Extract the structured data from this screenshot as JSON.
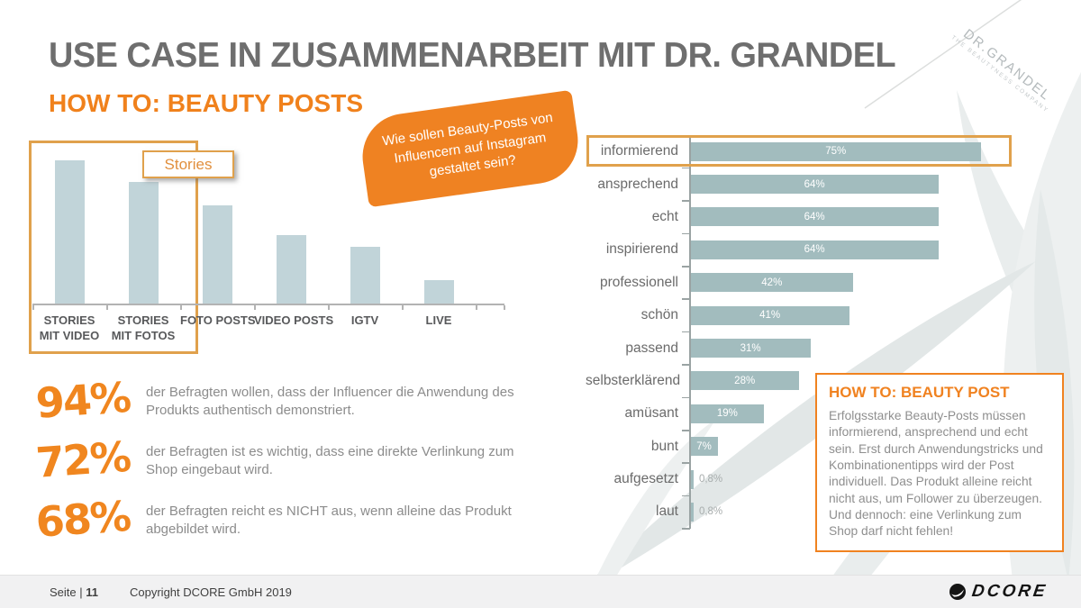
{
  "slide": {
    "title": "USE CASE IN ZUSAMMENARBEIT MIT DR. GRANDEL",
    "subtitle": "HOW TO: BEAUTY POSTS",
    "brand": {
      "name": "DR.GRANDEL",
      "tagline": "THE BEAUTYNESS COMPANY"
    }
  },
  "question_bubble": {
    "lines": [
      "Wie sollen Beauty-Posts von",
      "Influencern auf Instagram",
      "gestaltet sein?"
    ]
  },
  "chart_data": [
    {
      "id": "post-format-chart",
      "type": "bar",
      "orientation": "vertical",
      "categories": [
        "STORIES MIT VIDEO",
        "STORIES MIT FOTOS",
        "FOTO POSTS",
        "VIDEO POSTS",
        "IGTV",
        "LIVE"
      ],
      "label_lines": [
        [
          "STORIES",
          "MIT VIDEO"
        ],
        [
          "STORIES",
          "MIT FOTOS"
        ],
        [
          "FOTO POSTS"
        ],
        [
          "VIDEO POSTS"
        ],
        [
          "IGTV"
        ],
        [
          "LIVE"
        ]
      ],
      "values_relative_pct_of_max": [
        100,
        85,
        69,
        48,
        40,
        17
      ],
      "value_labels_shown": false,
      "bar_color": "#c1d4d9",
      "highlight": {
        "label": "Stories",
        "span_categories": [
          "STORIES MIT VIDEO",
          "STORIES MIT FOTOS"
        ]
      }
    },
    {
      "id": "attribute-chart",
      "type": "bar",
      "orientation": "horizontal",
      "categories": [
        "informierend",
        "ansprechend",
        "echt",
        "inspirierend",
        "professionell",
        "schön",
        "passend",
        "selbsterklärend",
        "amüsant",
        "bunt",
        "aufgesetzt",
        "laut"
      ],
      "values": [
        75,
        64,
        64,
        64,
        42,
        41,
        31,
        28,
        19,
        7,
        0.8,
        0.8
      ],
      "value_labels": [
        "75%",
        "64%",
        "64%",
        "64%",
        "42%",
        "41%",
        "31%",
        "28%",
        "19%",
        "7%",
        "0,8%",
        "0,8%"
      ],
      "xlim": [
        0,
        100
      ],
      "bar_color": "#a2bcbe",
      "highlighted_category": "informierend",
      "grid": false,
      "legend": false
    }
  ],
  "stats": [
    {
      "value": "94%",
      "text": "der Befragten wollen, dass der Influencer die Anwendung des Produkts authentisch demonstriert."
    },
    {
      "value": "72%",
      "text": "der Befragten ist es wichtig, dass eine direkte Verlinkung zum Shop eingebaut wird."
    },
    {
      "value": "68%",
      "text": "der Befragten reicht es NICHT aus, wenn alleine das Produkt abgebildet wird."
    }
  ],
  "howto_box": {
    "title": "HOW TO: BEAUTY POST",
    "body": "Erfolgsstarke Beauty-Posts müssen informierend, ansprechend und echt sein. Erst durch Anwendungstricks und Kombinationentipps wird der Post individuell. Das Produkt alleine reicht nicht aus, um Follower zu überzeugen. Und dennoch: eine Verlinkung zum Shop darf nicht fehlen!"
  },
  "footer": {
    "page_label": "Seite |",
    "page_number": "11",
    "copyright": "Copyright DCORE GmbH 2019",
    "logo_text": "DCORE"
  },
  "icons": {
    "dcore_logo_mark": "circle-swoosh"
  },
  "colors": {
    "accent_orange": "#f08220",
    "bubble_orange": "#ef8222",
    "highlight_border": "#e0a14c",
    "left_bar": "#c1d4d9",
    "right_bar": "#a2bcbe",
    "title_gray": "#6e6e6e",
    "text_gray": "#8c8c8c",
    "footer_bg": "#f1f1f2"
  }
}
